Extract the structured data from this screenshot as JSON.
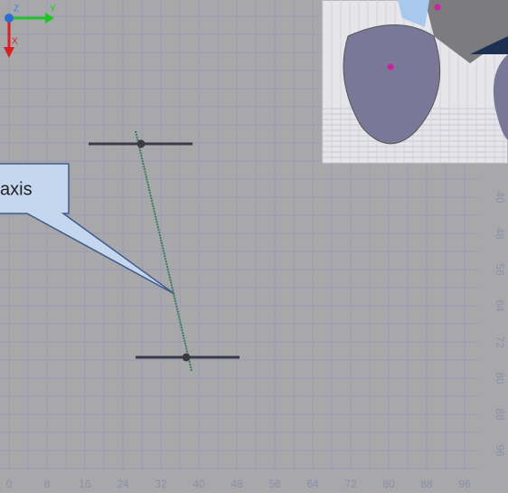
{
  "gizmo": {
    "z": "Z",
    "y": "Y",
    "x": "X"
  },
  "callout": {
    "text": "axis"
  },
  "bottom_scale": [
    0,
    8,
    16,
    24,
    32,
    40,
    48,
    56,
    64,
    72,
    80,
    88,
    96
  ],
  "right_scale": [
    40,
    48,
    56,
    64,
    72,
    80,
    88,
    96
  ]
}
